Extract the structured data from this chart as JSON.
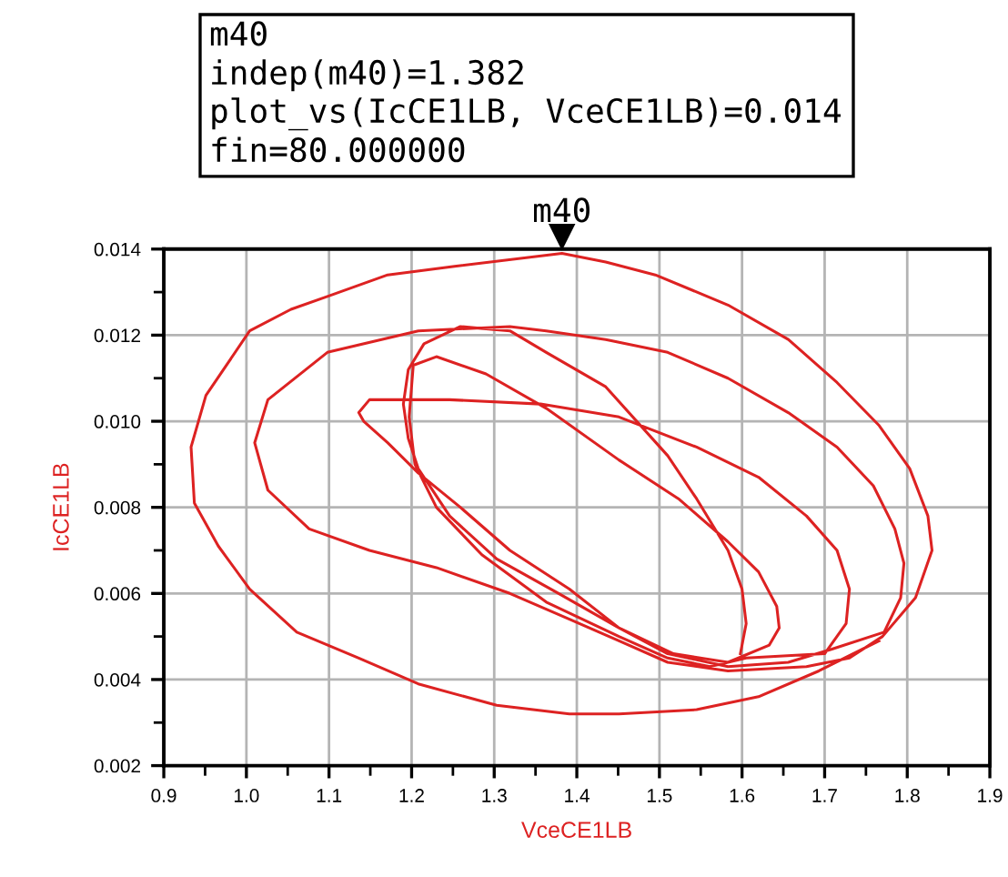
{
  "chart_data": {
    "type": "line",
    "xlabel": "VceCE1LB",
    "ylabel": "IcCE1LB",
    "xlim": [
      0.9,
      1.9
    ],
    "ylim": [
      0.002,
      0.014
    ],
    "xticks": [
      0.9,
      {
        "value": 0.95,
        "label": null
      },
      {
        "value": 1.0,
        "label": "1.0"
      },
      {
        "value": 1.05,
        "label": null
      },
      1.1,
      {
        "value": 1.15,
        "label": null
      },
      1.2,
      {
        "value": 1.25,
        "label": null
      },
      1.3,
      {
        "value": 1.35,
        "label": null
      },
      1.4,
      {
        "value": 1.45,
        "label": null
      },
      1.5,
      {
        "value": 1.55,
        "label": null
      },
      1.6,
      {
        "value": 1.65,
        "label": null
      },
      1.7,
      {
        "value": 1.75,
        "label": null
      },
      1.8,
      {
        "value": 1.85,
        "label": null
      },
      1.9
    ],
    "yticks": [
      0.002,
      {
        "value": 0.003,
        "label": null
      },
      0.004,
      {
        "value": 0.005,
        "label": null
      },
      0.006,
      {
        "value": 0.007,
        "label": null
      },
      0.008,
      {
        "value": 0.009,
        "label": null
      },
      {
        "value": 0.01,
        "label": "0.010"
      },
      {
        "value": 0.011,
        "label": null
      },
      0.012,
      {
        "value": 0.013,
        "label": null
      },
      0.014
    ],
    "grid": true,
    "line_style": "solid",
    "annotations": [
      "m40",
      "indep(m40)=1.382",
      "plot_vs(IcCE1LB, VceCE1LB)=0.014",
      "fin=80.000000",
      {
        "text": "m40",
        "x": 1.382,
        "y": 0.014
      }
    ],
    "series": [
      {
        "color": "#dd2222",
        "x": [
          1.766,
          1.693,
          1.62,
          1.545,
          1.451,
          1.391,
          1.303,
          1.208,
          1.136,
          1.061,
          1.004,
          0.966,
          0.937,
          0.933,
          0.951,
          1.004,
          1.054,
          1.098,
          1.171,
          1.252,
          1.382,
          1.435,
          1.495,
          1.583,
          1.656,
          1.715,
          1.766,
          1.803,
          1.825,
          1.83,
          1.81,
          1.77,
          1.73,
          1.678,
          1.583,
          1.51,
          1.451,
          1.391,
          1.319,
          1.23,
          1.149,
          1.076,
          1.026,
          1.01,
          1.026,
          1.098,
          1.208,
          1.319,
          1.363,
          1.435,
          1.51,
          1.583,
          1.656,
          1.715,
          1.759,
          1.785,
          1.796,
          1.792,
          1.772,
          1.708,
          1.656,
          1.583,
          1.51,
          1.451,
          1.391,
          1.319,
          1.259,
          1.208,
          1.171,
          1.142,
          1.136,
          1.149,
          1.246,
          1.356,
          1.451,
          1.545,
          1.62,
          1.678,
          1.715,
          1.73,
          1.726,
          1.7,
          1.605,
          1.561,
          1.51,
          1.451,
          1.363,
          1.285,
          1.23,
          1.204,
          1.197,
          1.202,
          1.23,
          1.29,
          1.363,
          1.451,
          1.523,
          1.583,
          1.62,
          1.642,
          1.645,
          1.633,
          1.583,
          1.517,
          1.451,
          1.378,
          1.303,
          1.246,
          1.208,
          1.196,
          1.19,
          1.196,
          1.215,
          1.259,
          1.319,
          1.363,
          1.435,
          1.51,
          1.545,
          1.583,
          1.6,
          1.605,
          1.598
        ],
        "values": [
          0.0049,
          0.0042,
          0.0036,
          0.0033,
          0.0032,
          0.0032,
          0.0034,
          0.0039,
          0.0045,
          0.0051,
          0.0061,
          0.0071,
          0.0081,
          0.0094,
          0.0106,
          0.0121,
          0.0126,
          0.0129,
          0.0134,
          0.0136,
          0.0139,
          0.0137,
          0.0134,
          0.0127,
          0.0119,
          0.0109,
          0.0099,
          0.0089,
          0.0078,
          0.007,
          0.0059,
          0.005,
          0.0045,
          0.0043,
          0.0042,
          0.0044,
          0.0049,
          0.0054,
          0.006,
          0.0066,
          0.007,
          0.0075,
          0.0084,
          0.0095,
          0.0105,
          0.0116,
          0.0121,
          0.0122,
          0.0121,
          0.0119,
          0.0116,
          0.011,
          0.0102,
          0.0094,
          0.0085,
          0.0075,
          0.0067,
          0.0059,
          0.0051,
          0.0047,
          0.0044,
          0.0043,
          0.0046,
          0.0052,
          0.0061,
          0.007,
          0.008,
          0.0088,
          0.0095,
          0.01,
          0.0102,
          0.0105,
          0.0105,
          0.0104,
          0.0101,
          0.0094,
          0.0087,
          0.0078,
          0.007,
          0.0061,
          0.0053,
          0.0046,
          0.0045,
          0.0043,
          0.0045,
          0.005,
          0.0058,
          0.0069,
          0.008,
          0.009,
          0.0101,
          0.0113,
          0.0115,
          0.0111,
          0.0103,
          0.0091,
          0.0082,
          0.0072,
          0.0065,
          0.0057,
          0.0052,
          0.0048,
          0.0044,
          0.0046,
          0.0052,
          0.006,
          0.0068,
          0.0078,
          0.0089,
          0.0096,
          0.0104,
          0.0112,
          0.0118,
          0.0122,
          0.0121,
          0.0116,
          0.0108,
          0.0092,
          0.0082,
          0.007,
          0.0061,
          0.0053,
          0.0046
        ]
      }
    ]
  }
}
